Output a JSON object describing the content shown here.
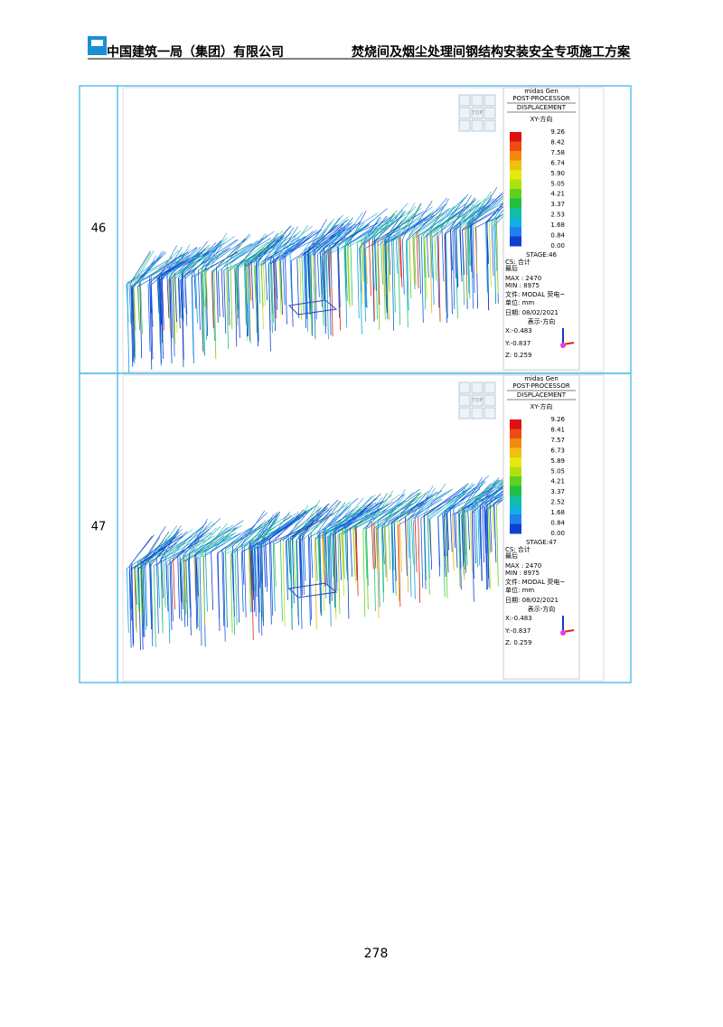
{
  "header": {
    "company": "中国建筑一局（集团）有限公司",
    "title": "焚烧间及烟尘处理间钢结构安装安全专项施工方案"
  },
  "table": {
    "rows": [
      {
        "stage": "46",
        "figure": {
          "nav": "TOP",
          "app": "midas Gen",
          "processor": "POST-PROCESSOR",
          "result": "DISPLACEMENT",
          "direction": "XY-方向",
          "legend": [
            "9.26",
            "8.42",
            "7.58",
            "6.74",
            "5.90",
            "5.05",
            "4.21",
            "3.37",
            "2.53",
            "1.68",
            "0.84",
            "0.00"
          ],
          "stage_label": "STAGE:46",
          "cs": "CS: 合计",
          "step": "最后",
          "max": "MAX : 2470",
          "min": "MIN : 8975",
          "file": "文件: MODAL 荧电~",
          "unit": "单位: mm",
          "date": "日期: 08/02/2021",
          "view": "表示-方向",
          "x": "X:-0.483",
          "y": "Y:-0.837",
          "z": "Z: 0.259"
        }
      },
      {
        "stage": "47",
        "figure": {
          "nav": "TOP",
          "app": "midas Gen",
          "processor": "POST-PROCESSOR",
          "result": "DISPLACEMENT",
          "direction": "XY-方向",
          "legend": [
            "9.26",
            "8.41",
            "7.57",
            "6.73",
            "5.89",
            "5.05",
            "4.21",
            "3.37",
            "2.52",
            "1.68",
            "0.84",
            "0.00"
          ],
          "stage_label": "STAGE:47",
          "cs": "CS: 合计",
          "step": "最后",
          "max": "MAX : 2470",
          "min": "MIN : 8975",
          "file": "文件: MODAL 荧电~",
          "unit": "单位: mm",
          "date": "日期: 08/02/2021",
          "view": "表示-方向",
          "x": "X:-0.483",
          "y": "Y:-0.837",
          "z": "Z: 0.259"
        }
      }
    ]
  },
  "footer": {
    "page_number": "278"
  }
}
